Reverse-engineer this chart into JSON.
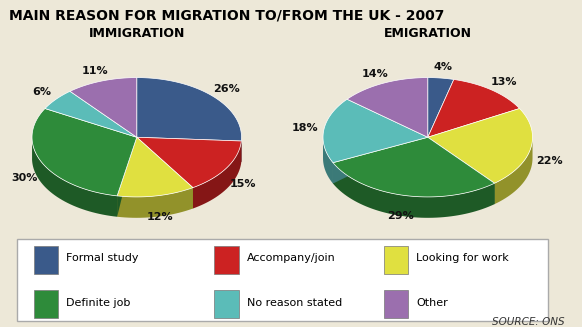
{
  "title": "MAIN REASON FOR MIGRATION TO/FROM THE UK - 2007",
  "immigration_label": "IMMIGRATION",
  "emigration_label": "EMIGRATION",
  "categories": [
    "Formal study",
    "Accompany/join",
    "Looking for work",
    "Definite job",
    "No reason stated",
    "Other"
  ],
  "imm_slices": [
    {
      "label": "Formal study",
      "pct": 26,
      "color": "#3a5a8a"
    },
    {
      "label": "Accompany/join",
      "pct": 15,
      "color": "#cc2222"
    },
    {
      "label": "Looking for work",
      "pct": 12,
      "color": "#e0e040"
    },
    {
      "label": "Definite job",
      "pct": 30,
      "color": "#2e8b3a"
    },
    {
      "label": "No reason stated",
      "pct": 6,
      "color": "#5bbcb8"
    },
    {
      "label": "Other",
      "pct": 11,
      "color": "#9b6fae"
    }
  ],
  "emi_slices": [
    {
      "label": "Formal study",
      "pct": 4,
      "color": "#3a5a8a"
    },
    {
      "label": "Accompany/join",
      "pct": 13,
      "color": "#cc2222"
    },
    {
      "label": "Looking for work",
      "pct": 22,
      "color": "#e0e040"
    },
    {
      "label": "Definite job",
      "pct": 29,
      "color": "#2e8b3a"
    },
    {
      "label": "No reason stated",
      "pct": 18,
      "color": "#5bbcb8"
    },
    {
      "label": "Other",
      "pct": 14,
      "color": "#9b6fae"
    }
  ],
  "legend_colors": [
    "#3a5a8a",
    "#cc2222",
    "#e0e040",
    "#2e8b3a",
    "#5bbcb8",
    "#9b6fae"
  ],
  "source_text": "SOURCE: ONS",
  "background_color": "#ede8d8",
  "title_fontsize": 10,
  "subtitle_fontsize": 9,
  "label_fontsize": 8,
  "legend_fontsize": 8
}
